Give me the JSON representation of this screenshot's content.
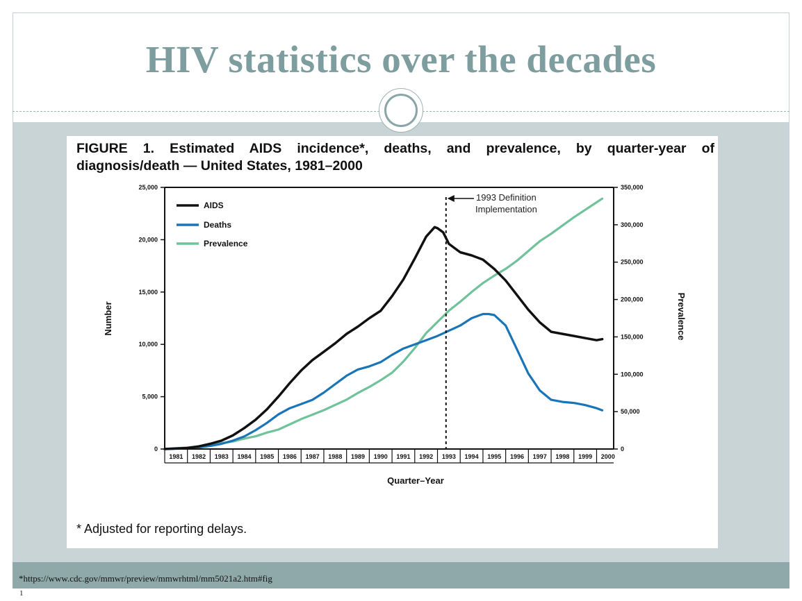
{
  "slide": {
    "title": "HIV statistics over the decades",
    "footer_url": "*https://www.cdc.gov/mmwr/preview/mmwrhtml/mm5021a2.htm#fig",
    "page_number": "1"
  },
  "figure": {
    "caption_line1": "FIGURE 1. Estimated AIDS incidence*, deaths, and prevalence, by quarter-year of",
    "caption_line2": "diagnosis/death — United States, 1981–2000",
    "footnote": "* Adjusted for reporting delays."
  },
  "chart_data": {
    "type": "line",
    "xlabel": "Quarter–Year",
    "ylabel": "Number",
    "y2label": "Prevalence",
    "xlim": [
      1981,
      2000.75
    ],
    "ylim": [
      0,
      25000
    ],
    "y2lim": [
      0,
      350000
    ],
    "x_tick_labels": [
      "1981",
      "1982",
      "1983",
      "1984",
      "1985",
      "1986",
      "1987",
      "1988",
      "1989",
      "1990",
      "1991",
      "1992",
      "1993",
      "1994",
      "1995",
      "1996",
      "1997",
      "1998",
      "1999",
      "2000"
    ],
    "y_ticks": [
      0,
      5000,
      10000,
      15000,
      20000,
      25000
    ],
    "y_tick_labels": [
      "0",
      "5,000",
      "10,000",
      "15,000",
      "20,000",
      "25,000"
    ],
    "y2_ticks": [
      0,
      50000,
      100000,
      150000,
      200000,
      250000,
      300000,
      350000
    ],
    "y2_tick_labels": [
      "0",
      "50,000",
      "100,000",
      "150,000",
      "200,000",
      "250,000",
      "300,000",
      "350,000"
    ],
    "legend_position": "top-left",
    "annotation": {
      "x": 1993,
      "line1": "1993 Definition",
      "line2": "Implementation"
    },
    "series": [
      {
        "name": "AIDS",
        "axis": "left",
        "color": "#111111",
        "x": [
          1981.0,
          1982.0,
          1982.5,
          1983.0,
          1983.5,
          1984.0,
          1984.5,
          1985.0,
          1985.5,
          1986.0,
          1986.5,
          1987.0,
          1987.5,
          1988.0,
          1988.5,
          1989.0,
          1989.5,
          1990.0,
          1990.5,
          1991.0,
          1991.5,
          1992.0,
          1992.5,
          1992.875,
          1993.0,
          1993.25,
          1993.5,
          1994.0,
          1994.5,
          1995.0,
          1995.5,
          1996.0,
          1996.5,
          1997.0,
          1997.5,
          1998.0,
          1998.5,
          1999.0,
          1999.5,
          2000.0,
          2000.25
        ],
        "values": [
          0,
          100,
          250,
          500,
          800,
          1300,
          2000,
          2800,
          3800,
          5000,
          6300,
          7500,
          8500,
          9300,
          10100,
          11000,
          11700,
          12500,
          13200,
          14600,
          16200,
          18200,
          20300,
          21200,
          21100,
          20700,
          19600,
          18800,
          18500,
          18100,
          17200,
          16100,
          14700,
          13300,
          12100,
          11200,
          11000,
          10800,
          10600,
          10400,
          10500
        ]
      },
      {
        "name": "Deaths",
        "axis": "left",
        "color": "#1a75b8",
        "x": [
          1981.0,
          1982.0,
          1982.5,
          1983.0,
          1983.5,
          1984.0,
          1984.5,
          1985.0,
          1985.5,
          1986.0,
          1986.5,
          1987.0,
          1987.5,
          1988.0,
          1988.5,
          1989.0,
          1989.5,
          1990.0,
          1990.5,
          1991.0,
          1991.5,
          1992.0,
          1992.5,
          1993.0,
          1993.5,
          1994.0,
          1994.5,
          1995.0,
          1995.25,
          1995.5,
          1996.0,
          1996.5,
          1997.0,
          1997.5,
          1998.0,
          1998.5,
          1999.0,
          1999.5,
          2000.0,
          2000.25
        ],
        "values": [
          0,
          50,
          150,
          300,
          500,
          800,
          1200,
          1800,
          2500,
          3300,
          3900,
          4300,
          4700,
          5400,
          6200,
          7000,
          7600,
          7900,
          8300,
          9000,
          9600,
          10000,
          10400,
          10800,
          11300,
          11800,
          12500,
          12900,
          12900,
          12800,
          11800,
          9500,
          7200,
          5600,
          4700,
          4500,
          4400,
          4200,
          3900,
          3700
        ]
      },
      {
        "name": "Prevalence",
        "axis": "right",
        "color": "#6fc29a",
        "x": [
          1981.0,
          1982.0,
          1983.0,
          1983.5,
          1984.0,
          1984.5,
          1985.0,
          1985.5,
          1986.0,
          1986.5,
          1987.0,
          1987.5,
          1988.0,
          1988.5,
          1989.0,
          1989.5,
          1990.0,
          1990.5,
          1991.0,
          1991.5,
          1992.0,
          1992.5,
          1993.0,
          1993.5,
          1994.0,
          1994.5,
          1995.0,
          1995.5,
          1996.0,
          1996.5,
          1997.0,
          1997.5,
          1998.0,
          1998.5,
          1999.0,
          1999.5,
          2000.0,
          2000.25
        ],
        "values": [
          0,
          2000,
          5000,
          8000,
          10000,
          14000,
          17000,
          22000,
          26000,
          33000,
          40000,
          46000,
          52000,
          59000,
          66000,
          75000,
          83000,
          92000,
          102000,
          117000,
          135000,
          155000,
          170000,
          185000,
          197000,
          210000,
          222000,
          232000,
          241000,
          252000,
          265000,
          278000,
          288000,
          299000,
          310000,
          320000,
          330000,
          335000
        ]
      }
    ]
  }
}
